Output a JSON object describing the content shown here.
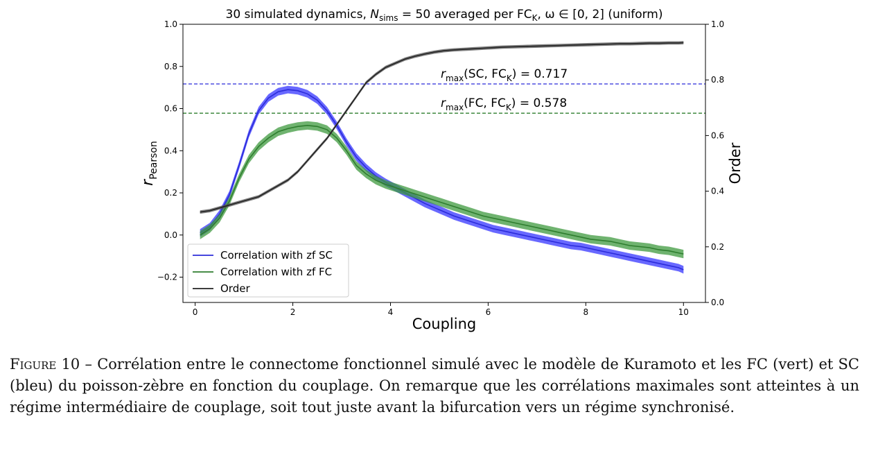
{
  "chart_data": {
    "type": "line",
    "title": {
      "prefix": "30 simulated dynamics, ",
      "n_symbol": "N",
      "n_sub": "sims",
      "middle": " = 50 averaged per FC",
      "fc_sub": "K",
      "omega": ", ω ∈ [0,  2] (uniform)"
    },
    "xlabel": "Coupling",
    "ylabel_left": {
      "symbol": "r",
      "sub": "Pearson"
    },
    "ylabel_right": "Order",
    "xlim": [
      -0.25,
      10.45
    ],
    "ylim_left": [
      -0.32,
      1.0
    ],
    "ylim_right": [
      0.0,
      1.0
    ],
    "xticks": [
      0,
      2,
      4,
      6,
      8,
      10
    ],
    "xtick_labels": [
      "0",
      "2",
      "4",
      "6",
      "8",
      "10"
    ],
    "yticks_left": [
      -0.2,
      0.0,
      0.2,
      0.4,
      0.6,
      0.8,
      1.0
    ],
    "ytick_labels_left": [
      "−0.2",
      "0.0",
      "0.2",
      "0.4",
      "0.6",
      "0.8",
      "1.0"
    ],
    "yticks_right": [
      0.0,
      0.2,
      0.4,
      0.6,
      0.8,
      1.0
    ],
    "ytick_labels_right": [
      "0.0",
      "0.2",
      "0.4",
      "0.6",
      "0.8",
      "1.0"
    ],
    "x": [
      0.1,
      0.3,
      0.5,
      0.7,
      0.9,
      1.1,
      1.3,
      1.5,
      1.7,
      1.9,
      2.1,
      2.3,
      2.5,
      2.7,
      2.9,
      3.1,
      3.3,
      3.5,
      3.7,
      3.9,
      4.1,
      4.3,
      4.5,
      4.7,
      4.9,
      5.1,
      5.3,
      5.5,
      5.7,
      5.9,
      6.1,
      6.3,
      6.5,
      6.7,
      6.9,
      7.1,
      7.3,
      7.5,
      7.7,
      7.9,
      8.1,
      8.3,
      8.5,
      8.7,
      8.9,
      9.1,
      9.3,
      9.5,
      9.7,
      9.9,
      10.0
    ],
    "series": [
      {
        "name": "Correlation with zf SC",
        "axis": "left",
        "color": "#2b2bd9",
        "band_color": "#3535ff",
        "band": 0.018,
        "values": [
          0.01,
          0.04,
          0.1,
          0.19,
          0.33,
          0.48,
          0.59,
          0.65,
          0.68,
          0.69,
          0.685,
          0.67,
          0.64,
          0.59,
          0.52,
          0.44,
          0.37,
          0.32,
          0.28,
          0.25,
          0.225,
          0.2,
          0.175,
          0.15,
          0.13,
          0.11,
          0.09,
          0.075,
          0.06,
          0.045,
          0.03,
          0.02,
          0.01,
          0.0,
          -0.01,
          -0.02,
          -0.03,
          -0.04,
          -0.05,
          -0.055,
          -0.065,
          -0.075,
          -0.085,
          -0.095,
          -0.105,
          -0.115,
          -0.125,
          -0.135,
          -0.145,
          -0.155,
          -0.165
        ]
      },
      {
        "name": "Correlation with zf FC",
        "axis": "left",
        "color": "#2e7d2e",
        "band_color": "#3f9a3f",
        "band": 0.02,
        "values": [
          0.0,
          0.03,
          0.08,
          0.16,
          0.27,
          0.36,
          0.42,
          0.46,
          0.49,
          0.505,
          0.515,
          0.52,
          0.515,
          0.5,
          0.46,
          0.4,
          0.33,
          0.29,
          0.26,
          0.24,
          0.225,
          0.21,
          0.195,
          0.18,
          0.165,
          0.15,
          0.135,
          0.12,
          0.105,
          0.09,
          0.08,
          0.07,
          0.06,
          0.05,
          0.04,
          0.03,
          0.02,
          0.01,
          0.0,
          -0.01,
          -0.02,
          -0.025,
          -0.03,
          -0.04,
          -0.05,
          -0.055,
          -0.06,
          -0.07,
          -0.075,
          -0.085,
          -0.09
        ]
      },
      {
        "name": "Order",
        "axis": "right",
        "color": "#222222",
        "band_color": "#555555",
        "band": 0.006,
        "values": [
          0.325,
          0.33,
          0.34,
          0.35,
          0.36,
          0.37,
          0.38,
          0.4,
          0.42,
          0.44,
          0.47,
          0.51,
          0.55,
          0.59,
          0.64,
          0.69,
          0.74,
          0.79,
          0.82,
          0.845,
          0.86,
          0.875,
          0.885,
          0.893,
          0.9,
          0.905,
          0.908,
          0.91,
          0.912,
          0.914,
          0.916,
          0.918,
          0.919,
          0.92,
          0.921,
          0.922,
          0.923,
          0.924,
          0.925,
          0.926,
          0.927,
          0.928,
          0.929,
          0.93,
          0.93,
          0.931,
          0.932,
          0.932,
          0.933,
          0.933,
          0.934
        ]
      }
    ],
    "reference_lines": [
      {
        "value": 0.717,
        "color": "#2b2bd9",
        "label_fn": "max",
        "label_args": "(SC, FC",
        "label_sub": "K",
        "label_tail": ") =  0.717"
      },
      {
        "value": 0.578,
        "color": "#2e7d2e",
        "label_fn": "max",
        "label_args": "(FC, FC",
        "label_sub": "K",
        "label_tail": ") =  0.578"
      }
    ],
    "reference_symbol": "r",
    "legend_placement": "lower-left",
    "grid": false
  },
  "caption": {
    "label": "Figure 10",
    "text": " – Corrélation entre le connectome fonctionnel simulé avec le modèle de Kuramoto et les FC (vert) et SC (bleu) du poisson-zèbre en fonction du couplage. On remarque que les corrélations maximales sont atteintes à un régime intermédiaire de couplage, soit tout juste avant la bifurcation vers un régime synchronisé."
  }
}
